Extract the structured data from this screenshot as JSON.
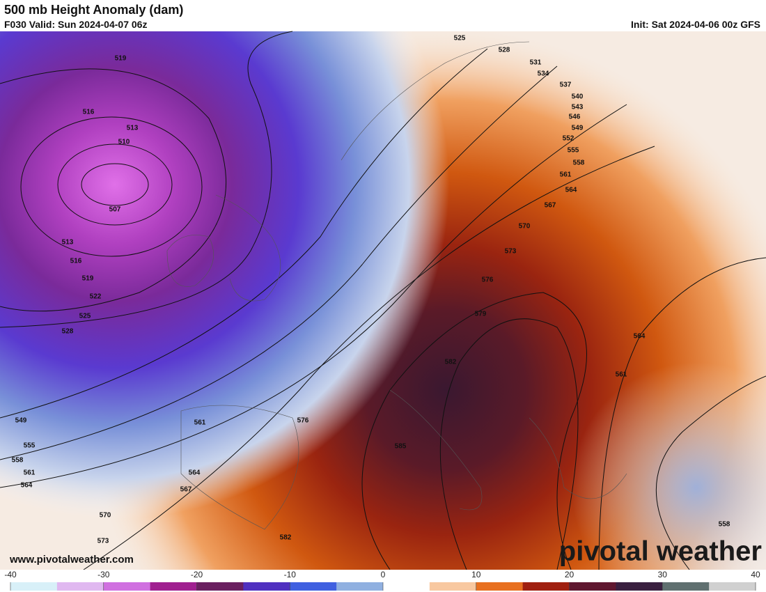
{
  "header": {
    "title": "500 mb Height Anomaly (dam)",
    "valid": "F030 Valid: Sun 2024-04-07 06z",
    "init": "Init: Sat 2024-04-06 00z GFS"
  },
  "map": {
    "contour_labels": [
      519,
      516,
      513,
      510,
      507,
      513,
      516,
      519,
      522,
      525,
      528,
      549,
      555,
      558,
      561,
      564,
      567,
      564,
      561,
      570,
      573,
      576,
      582,
      585,
      582,
      579,
      576,
      573,
      570,
      567,
      564,
      561,
      558,
      555,
      552,
      549,
      546,
      543,
      540,
      537,
      534,
      531,
      528,
      525,
      564,
      561,
      558
    ]
  },
  "colorbar": {
    "range": [
      -40,
      40
    ],
    "ticks": [
      -40,
      -30,
      -20,
      -10,
      0,
      10,
      20,
      30,
      40
    ],
    "colors": [
      "#d8f0f8",
      "#e0b8f0",
      "#d070e0",
      "#a02090",
      "#6a2060",
      "#5030c0",
      "#4060e0",
      "#90b0e0",
      "#ffffff",
      "#f8c8a0",
      "#e87020",
      "#a02010",
      "#601830",
      "#3a2040",
      "#607070",
      "#d0d0d0"
    ]
  },
  "footer": {
    "url": "www.pivotalweather.com",
    "brand": "pivotal weather"
  }
}
